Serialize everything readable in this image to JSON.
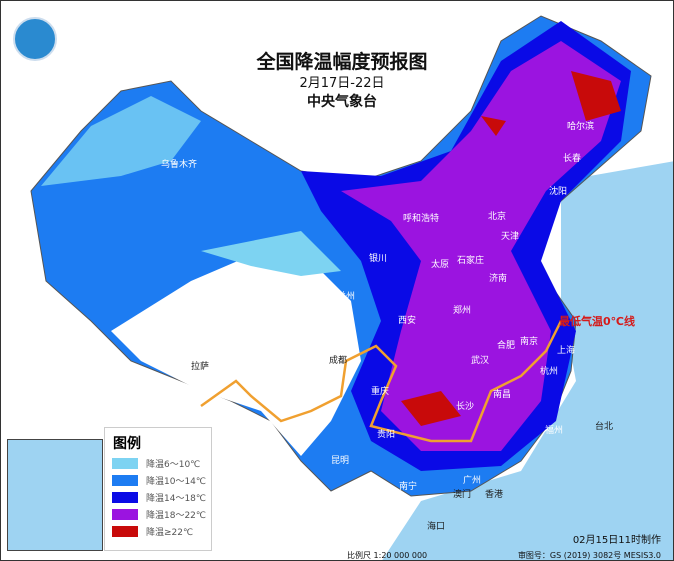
{
  "header": {
    "title": "全国降温幅度预报图",
    "date_range": "2月17日-22日",
    "organization": "中央气象台"
  },
  "legend": {
    "title": "图例",
    "items": [
      {
        "label": "降温6～10℃",
        "color": "#7dd3f2"
      },
      {
        "label": "降温10～14℃",
        "color": "#1d7cf2"
      },
      {
        "label": "降温14～18℃",
        "color": "#0a0ae6"
      },
      {
        "label": "降温18～22℃",
        "color": "#9b14e0"
      },
      {
        "label": "降温≥22℃",
        "color": "#c80a0a"
      }
    ]
  },
  "annotation": {
    "zero_line_label": "最低气温0℃线",
    "zero_line_color": "#f0a030"
  },
  "footer": {
    "made_time": "02月15日11时制作",
    "scale": "比例尺 1:20 000 000",
    "approval": "审图号：GS (2019) 3082号 MESIS3.0"
  },
  "cities": [
    {
      "name": "哈尔滨"
    },
    {
      "name": "长春"
    },
    {
      "name": "沈阳"
    },
    {
      "name": "呼和浩特"
    },
    {
      "name": "北京"
    },
    {
      "name": "天津"
    },
    {
      "name": "石家庄"
    },
    {
      "name": "太原"
    },
    {
      "name": "济南"
    },
    {
      "name": "郑州"
    },
    {
      "name": "西安"
    },
    {
      "name": "银川"
    },
    {
      "name": "兰州"
    },
    {
      "name": "西宁"
    },
    {
      "name": "乌鲁木齐"
    },
    {
      "name": "拉萨"
    },
    {
      "name": "成都"
    },
    {
      "name": "重庆"
    },
    {
      "name": "贵阳"
    },
    {
      "name": "昆明"
    },
    {
      "name": "南宁"
    },
    {
      "name": "广州"
    },
    {
      "name": "长沙"
    },
    {
      "name": "武汉"
    },
    {
      "name": "南昌"
    },
    {
      "name": "合肥"
    },
    {
      "name": "南京"
    },
    {
      "name": "上海"
    },
    {
      "name": "杭州"
    },
    {
      "name": "福州"
    },
    {
      "name": "台北"
    },
    {
      "name": "海口"
    },
    {
      "name": "香港"
    },
    {
      "name": "澳门"
    }
  ]
}
